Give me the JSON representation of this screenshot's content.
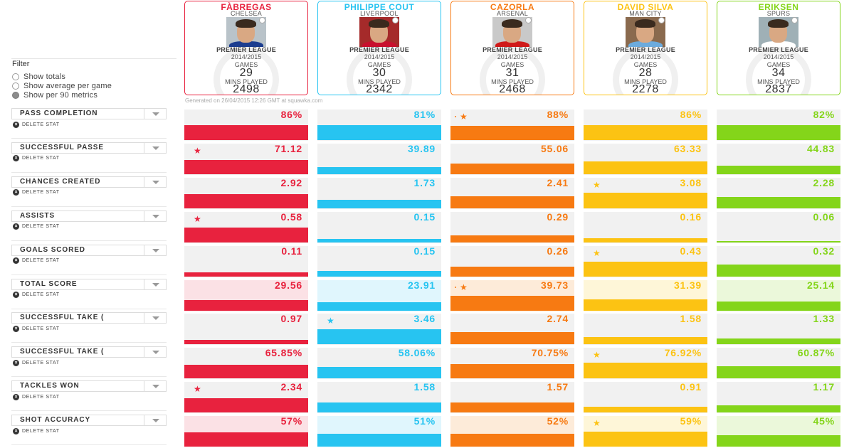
{
  "filter": {
    "title": "Filter",
    "options": [
      {
        "label": "Show totals",
        "selected": false
      },
      {
        "label": "Show average per game",
        "selected": false
      },
      {
        "label": "Show per 90 metrics",
        "selected": true
      }
    ]
  },
  "players": [
    {
      "name": "FÀBREGAS",
      "club": "CHELSEA",
      "league": "PREMIER LEAGUE",
      "season": "2014/2015",
      "games_label": "GAMES",
      "games": "29",
      "mins_label": "MINS PLAYED",
      "mins": "2498",
      "color": "#e8223e",
      "tint": "#fbe1e5",
      "shirt": "#1c3d8f",
      "photo_bg": "#b9c3c9"
    },
    {
      "name": "PHILIPPE COUT",
      "club": "LIVERPOOL",
      "league": "PREMIER LEAGUE",
      "season": "2014/2015",
      "games_label": "GAMES",
      "games": "30",
      "mins_label": "MINS PLAYED",
      "mins": "2342",
      "color": "#27c4f1",
      "tint": "#e0f6fd",
      "shirt": "#c8102e",
      "photo_bg": "#a52a2a"
    },
    {
      "name": "CAZORLA",
      "club": "ARSENAL",
      "league": "PREMIER LEAGUE",
      "season": "2014/2015",
      "games_label": "GAMES",
      "games": "31",
      "mins_label": "MINS PLAYED",
      "mins": "2468",
      "color": "#f77a12",
      "tint": "#fdebd9",
      "shirt": "#d01a1a",
      "photo_bg": "#c9c9c9"
    },
    {
      "name": "DAVID SILVA",
      "club": "MAN CITY",
      "league": "PREMIER LEAGUE",
      "season": "2014/2015",
      "games_label": "GAMES",
      "games": "28",
      "mins_label": "MINS PLAYED",
      "mins": "2278",
      "color": "#fcc313",
      "tint": "#fef6d8",
      "shirt": "#6cabdd",
      "photo_bg": "#8a6a4e"
    },
    {
      "name": "ERIKSEN",
      "club": "SPURS",
      "league": "PREMIER LEAGUE",
      "season": "2014/2015",
      "games_label": "GAMES",
      "games": "34",
      "mins_label": "MINS PLAYED",
      "mins": "2837",
      "color": "#84d51a",
      "tint": "#ebf8da",
      "shirt": "#ffffff",
      "photo_bg": "#9fb0b6"
    }
  ],
  "generated": "Generated on 26/04/2015 12:26 GMT at squawka.com",
  "delete_label": "DELETE STAT",
  "stats": [
    {
      "label": "PASS COMPLETION",
      "values": [
        "86%",
        "81%",
        "88%",
        "86%",
        "82%"
      ],
      "fill": [
        0.62,
        0.62,
        0.6,
        0.62,
        0.62
      ],
      "star": 2,
      "dim": false
    },
    {
      "label": "SUCCESSFUL PASSE",
      "values": [
        "71.12",
        "39.89",
        "55.06",
        "63.33",
        "44.83"
      ],
      "fill": [
        0.6,
        0.3,
        0.45,
        0.52,
        0.36
      ],
      "star": 0,
      "dim": false
    },
    {
      "label": "CHANCES CREATED",
      "values": [
        "2.92",
        "1.73",
        "2.41",
        "3.08",
        "2.28"
      ],
      "fill": [
        0.6,
        0.35,
        0.5,
        0.64,
        0.47
      ],
      "star": 3,
      "dim": false
    },
    {
      "label": "ASSISTS",
      "values": [
        "0.58",
        "0.15",
        "0.29",
        "0.16",
        "0.06"
      ],
      "fill": [
        0.62,
        0.16,
        0.3,
        0.17,
        0.07
      ],
      "star": 0,
      "dim": false
    },
    {
      "label": "GOALS SCORED",
      "values": [
        "0.11",
        "0.15",
        "0.26",
        "0.43",
        "0.32"
      ],
      "fill": [
        0.17,
        0.24,
        0.42,
        0.62,
        0.5
      ],
      "star": 3,
      "dim": false
    },
    {
      "label": "TOTAL SCORE",
      "values": [
        "29.56",
        "23.91",
        "39.73",
        "31.39",
        "25.14"
      ],
      "fill": [
        0.45,
        0.36,
        0.62,
        0.48,
        0.38
      ],
      "star": 2,
      "dim": true
    },
    {
      "label": "SUCCESSFUL TAKE (",
      "values": [
        "0.97",
        "3.46",
        "2.74",
        "1.58",
        "1.33"
      ],
      "fill": [
        0.18,
        0.62,
        0.49,
        0.28,
        0.24
      ],
      "star": 1,
      "dim": false
    },
    {
      "label": "SUCCESSFUL TAKE (",
      "values": [
        "65.85%",
        "58.06%",
        "70.75%",
        "76.92%",
        "60.87%"
      ],
      "fill": [
        0.55,
        0.48,
        0.6,
        0.64,
        0.5
      ],
      "star": 3,
      "dim": false
    },
    {
      "label": "TACKLES WON",
      "values": [
        "2.34",
        "1.58",
        "1.57",
        "0.91",
        "1.17"
      ],
      "fill": [
        0.6,
        0.4,
        0.4,
        0.23,
        0.3
      ],
      "star": 0,
      "dim": false
    },
    {
      "label": "SHOT ACCURACY",
      "values": [
        "57%",
        "51%",
        "52%",
        "59%",
        "45%"
      ],
      "fill": [
        0.6,
        0.53,
        0.54,
        0.62,
        0.47
      ],
      "star": 3,
      "dim": true
    }
  ]
}
